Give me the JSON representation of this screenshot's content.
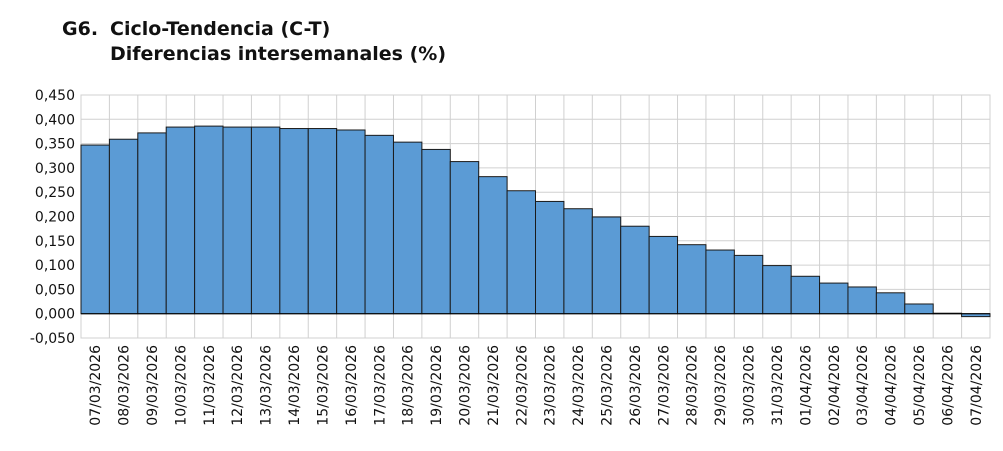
{
  "header": {
    "code": "G6.",
    "line1": "Ciclo-Tendencia (C-T)",
    "line2": "Diferencias intersemanales (%)"
  },
  "colors": {
    "bar_fill": "#5b9bd5",
    "bar_stroke": "#1a1a1a",
    "grid": "#d0d0d0",
    "axis": "#000000"
  },
  "chart_data": {
    "type": "bar",
    "title": "Ciclo-Tendencia (C-T) Diferencias intersemanales (%)",
    "xlabel": "",
    "ylabel": "",
    "ylim": [
      -0.05,
      0.45
    ],
    "yticks": [
      -0.05,
      0.0,
      0.05,
      0.1,
      0.15,
      0.2,
      0.25,
      0.3,
      0.35,
      0.4,
      0.45
    ],
    "ytick_labels": [
      "-0,050",
      "0,000",
      "0,050",
      "0,100",
      "0,150",
      "0,200",
      "0,250",
      "0,300",
      "0,350",
      "0,400",
      "0,450"
    ],
    "grid": true,
    "legend": "none",
    "categories": [
      "07/03/2026",
      "08/03/2026",
      "09/03/2026",
      "10/03/2026",
      "11/03/2026",
      "12/03/2026",
      "13/03/2026",
      "14/03/2026",
      "15/03/2026",
      "16/03/2026",
      "17/03/2026",
      "18/03/2026",
      "19/03/2026",
      "20/03/2026",
      "21/03/2026",
      "22/03/2026",
      "23/03/2026",
      "24/03/2026",
      "25/03/2026",
      "26/03/2026",
      "27/03/2026",
      "28/03/2026",
      "29/03/2026",
      "30/03/2026",
      "31/03/2026",
      "01/04/2026",
      "02/04/2026",
      "03/04/2026",
      "04/04/2026",
      "05/04/2026",
      "06/04/2026",
      "07/04/2026"
    ],
    "values": [
      0.347,
      0.359,
      0.372,
      0.384,
      0.386,
      0.384,
      0.384,
      0.381,
      0.381,
      0.378,
      0.367,
      0.353,
      0.338,
      0.313,
      0.282,
      0.253,
      0.231,
      0.216,
      0.199,
      0.18,
      0.159,
      0.142,
      0.131,
      0.12,
      0.099,
      0.077,
      0.063,
      0.055,
      0.043,
      0.02,
      0.001,
      -0.006
    ]
  }
}
